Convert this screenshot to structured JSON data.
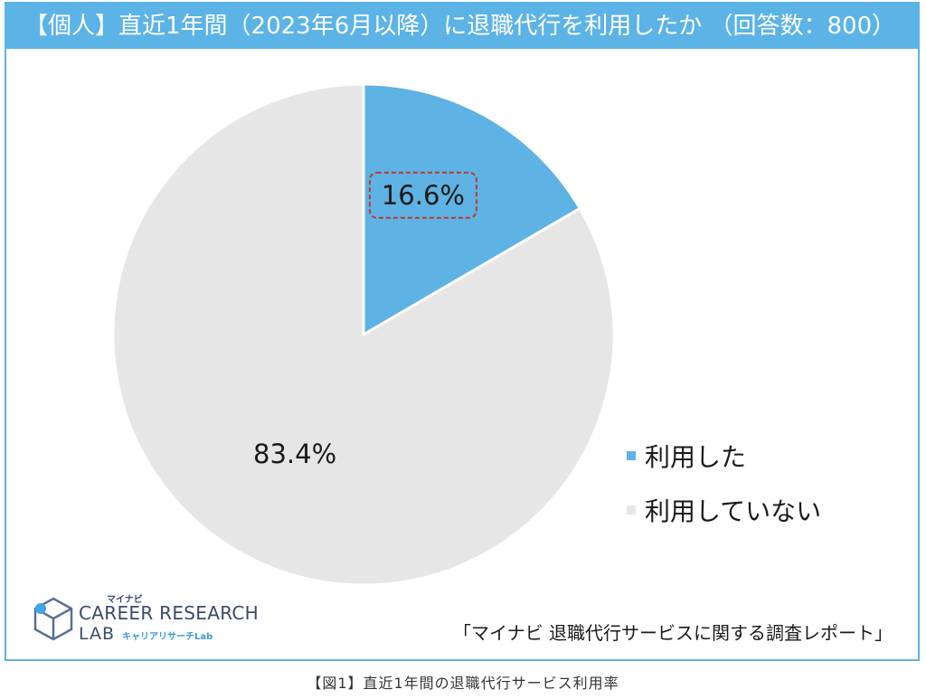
{
  "title": "【個人】直近1年間（2023年6月以降）に退職代行を利用したか （回答数：800）",
  "chart_data": {
    "type": "pie",
    "title": "【個人】直近1年間（2023年6月以降）に退職代行を利用したか （回答数：800）",
    "start_angle": "12 o'clock",
    "direction": "clockwise",
    "slices": [
      {
        "label": "利用した",
        "value": 16.6,
        "value_label": "16.6%",
        "color": "#5eb2e4",
        "highlighted": true
      },
      {
        "label": "利用していない",
        "value": 83.4,
        "value_label": "83.4%",
        "color": "#e6e6e6",
        "highlighted": false
      }
    ],
    "legend_position": "right"
  },
  "logo": {
    "small_jp": "マイナビ",
    "main": "CAREER RESEARCH",
    "lab": "LAB",
    "sub": "キャリアリサーチLab"
  },
  "source_note": "「マイナビ 退職代行サービスに関する調査レポート」",
  "caption": "【図1】直近1年間の退職代行サービス利用率",
  "colors": {
    "accent": "#5cb3e6",
    "highlight_border": "#c0392b"
  }
}
